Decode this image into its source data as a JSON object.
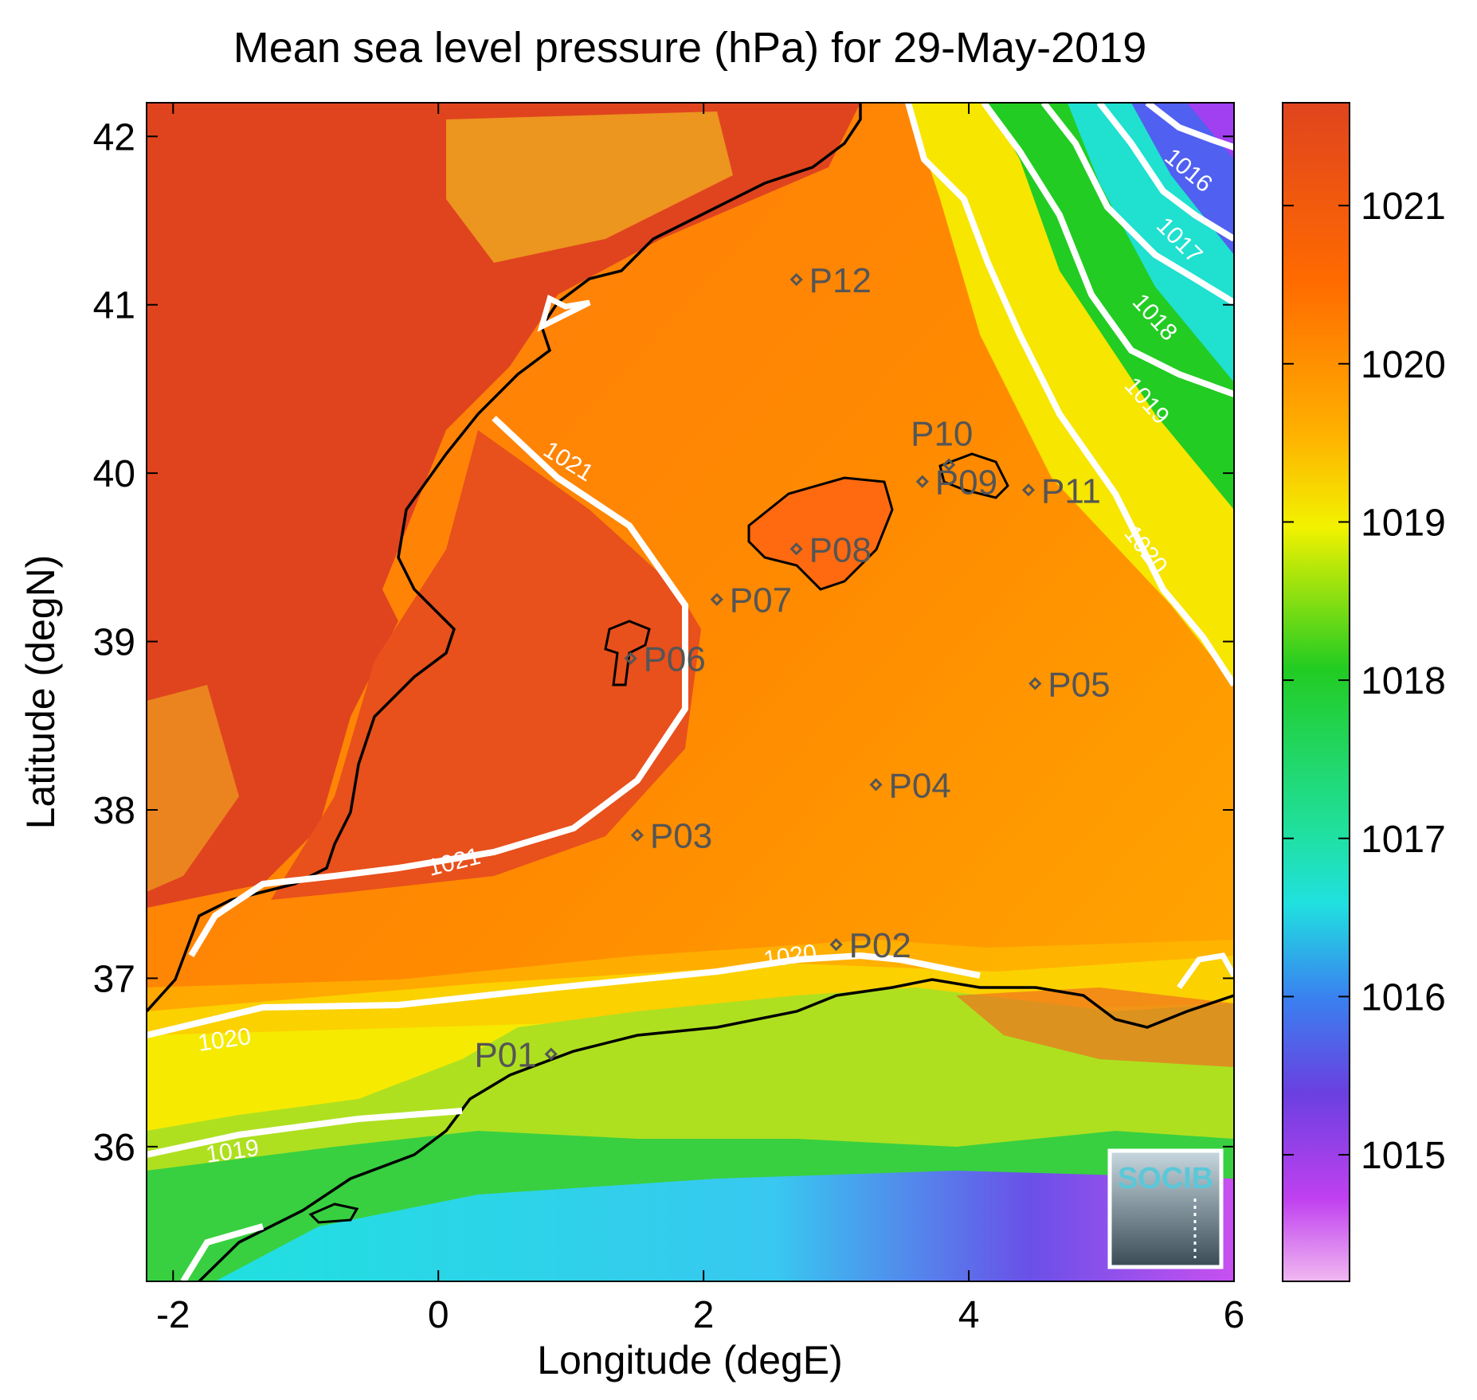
{
  "title": "Mean sea level pressure (hPa) for 29-May-2019",
  "x_axis": {
    "label": "Longitude (degE)",
    "ticks": [
      "-2",
      "0",
      "2",
      "4",
      "6"
    ]
  },
  "y_axis": {
    "label": "Latitude (degN)",
    "ticks": [
      "42",
      "41",
      "40",
      "39",
      "38",
      "37",
      "36"
    ]
  },
  "colorbar": {
    "ticks": [
      "1021",
      "1020",
      "1019",
      "1018",
      "1017",
      "1016",
      "1015"
    ],
    "colors": [
      "#e0441e",
      "#ff9a00",
      "#f7f700",
      "#22cc22",
      "#20e0d0",
      "#4a5cf0",
      "#b030f0",
      "#f0a0f0"
    ]
  },
  "logo": {
    "text": "SOCIB"
  },
  "map_data": {
    "lon_range": [
      -2.2,
      6.0
    ],
    "lat_range": [
      35.2,
      42.2
    ],
    "stations": [
      {
        "id": "P01",
        "label": "P01",
        "lon": 0.85,
        "lat": 36.55
      },
      {
        "id": "P02",
        "label": "P02",
        "lon": 3.0,
        "lat": 37.2
      },
      {
        "id": "P03",
        "label": "P03",
        "lon": 1.5,
        "lat": 37.85
      },
      {
        "id": "P04",
        "label": "P04",
        "lon": 3.3,
        "lat": 38.15
      },
      {
        "id": "P05",
        "label": "P05",
        "lon": 4.5,
        "lat": 38.75
      },
      {
        "id": "P06",
        "label": "P06",
        "lon": 1.45,
        "lat": 38.9
      },
      {
        "id": "P07",
        "label": "P07",
        "lon": 2.1,
        "lat": 39.25
      },
      {
        "id": "P08",
        "label": "P08",
        "lon": 2.7,
        "lat": 39.55
      },
      {
        "id": "P09",
        "label": "P09",
        "lon": 3.65,
        "lat": 39.95
      },
      {
        "id": "P10",
        "label": "P10",
        "lon": 3.85,
        "lat": 40.05
      },
      {
        "id": "P11",
        "label": "P11",
        "lon": 4.45,
        "lat": 39.9
      },
      {
        "id": "P12",
        "label": "P12",
        "lon": 2.7,
        "lat": 41.15
      }
    ],
    "isobar_labels": [
      "1021",
      "1021",
      "1020",
      "1020",
      "1020",
      "1019",
      "1019",
      "1018",
      "1017",
      "1016"
    ]
  }
}
